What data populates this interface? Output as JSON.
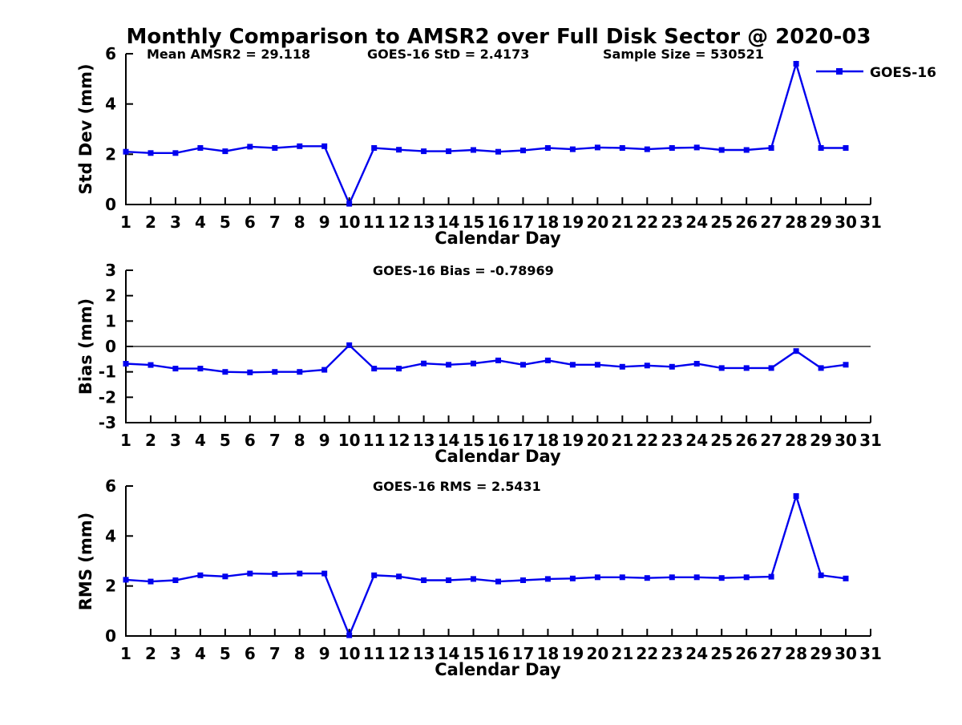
{
  "figure": {
    "title": "Monthly Comparison to AMSR2 over Full Disk Sector @ 2020-03",
    "background": "#FFFFFF"
  },
  "legend": {
    "label": "GOES-16",
    "position": "top-right"
  },
  "colors": {
    "series": "#0000EE",
    "axis": "#000000",
    "text": "#000000",
    "zero_line": "#000000"
  },
  "chart_data": [
    {
      "type": "line",
      "series_name": "GOES-16",
      "annotations": [
        "Mean AMSR2 = 29.118",
        "GOES-16 StD = 2.4173",
        "Sample Size = 530521"
      ],
      "ylabel": "Std Dev (mm)",
      "xlabel": "Calendar Day",
      "ylim": [
        0,
        6
      ],
      "yticks": [
        0,
        2,
        4,
        6
      ],
      "xlim": [
        1,
        31
      ],
      "xticks": [
        1,
        2,
        3,
        4,
        5,
        6,
        7,
        8,
        9,
        10,
        11,
        12,
        13,
        14,
        15,
        16,
        17,
        18,
        19,
        20,
        21,
        22,
        23,
        24,
        25,
        26,
        27,
        28,
        29,
        30,
        31
      ],
      "grid": false,
      "zero_line": false,
      "x": [
        1,
        2,
        3,
        4,
        5,
        6,
        7,
        8,
        9,
        10,
        11,
        12,
        13,
        14,
        15,
        16,
        17,
        18,
        19,
        20,
        21,
        22,
        23,
        24,
        25,
        26,
        27,
        28,
        29,
        30
      ],
      "values": [
        2.1,
        2.05,
        2.05,
        2.25,
        2.12,
        2.3,
        2.25,
        2.32,
        2.32,
        0.03,
        2.25,
        2.18,
        2.12,
        2.12,
        2.17,
        2.1,
        2.15,
        2.25,
        2.2,
        2.27,
        2.25,
        2.2,
        2.25,
        2.27,
        2.17,
        2.17,
        2.25,
        5.6,
        2.25,
        2.25
      ]
    },
    {
      "type": "line",
      "series_name": "GOES-16",
      "annotations": [
        "GOES-16 Bias = -0.78969"
      ],
      "ylabel": "Bias (mm)",
      "xlabel": "Calendar Day",
      "ylim": [
        -3,
        3
      ],
      "yticks": [
        -3,
        -2,
        -1,
        0,
        1,
        2,
        3
      ],
      "xlim": [
        1,
        31
      ],
      "xticks": [
        1,
        2,
        3,
        4,
        5,
        6,
        7,
        8,
        9,
        10,
        11,
        12,
        13,
        14,
        15,
        16,
        17,
        18,
        19,
        20,
        21,
        22,
        23,
        24,
        25,
        26,
        27,
        28,
        29,
        30,
        31
      ],
      "grid": false,
      "zero_line": true,
      "x": [
        1,
        2,
        3,
        4,
        5,
        6,
        7,
        8,
        9,
        10,
        11,
        12,
        13,
        14,
        15,
        16,
        17,
        18,
        19,
        20,
        21,
        22,
        23,
        24,
        25,
        26,
        27,
        28,
        29,
        30
      ],
      "values": [
        -0.68,
        -0.73,
        -0.87,
        -0.87,
        -1.0,
        -1.02,
        -1.0,
        -1.0,
        -0.92,
        0.05,
        -0.87,
        -0.87,
        -0.67,
        -0.72,
        -0.67,
        -0.55,
        -0.72,
        -0.55,
        -0.72,
        -0.72,
        -0.8,
        -0.75,
        -0.8,
        -0.68,
        -0.85,
        -0.85,
        -0.85,
        -0.18,
        -0.85,
        -0.72
      ]
    },
    {
      "type": "line",
      "series_name": "GOES-16",
      "annotations": [
        "GOES-16 RMS = 2.5431"
      ],
      "ylabel": "RMS (mm)",
      "xlabel": "Calendar Day",
      "ylim": [
        0,
        6
      ],
      "yticks": [
        0,
        2,
        4,
        6
      ],
      "xlim": [
        1,
        31
      ],
      "xticks": [
        1,
        2,
        3,
        4,
        5,
        6,
        7,
        8,
        9,
        10,
        11,
        12,
        13,
        14,
        15,
        16,
        17,
        18,
        19,
        20,
        21,
        22,
        23,
        24,
        25,
        26,
        27,
        28,
        29,
        30,
        31
      ],
      "grid": false,
      "zero_line": false,
      "x": [
        1,
        2,
        3,
        4,
        5,
        6,
        7,
        8,
        9,
        10,
        11,
        12,
        13,
        14,
        15,
        16,
        17,
        18,
        19,
        20,
        21,
        22,
        23,
        24,
        25,
        26,
        27,
        28,
        29,
        30
      ],
      "values": [
        2.25,
        2.18,
        2.23,
        2.43,
        2.38,
        2.5,
        2.48,
        2.5,
        2.5,
        0.03,
        2.43,
        2.38,
        2.23,
        2.23,
        2.28,
        2.18,
        2.23,
        2.28,
        2.3,
        2.35,
        2.35,
        2.32,
        2.35,
        2.35,
        2.32,
        2.35,
        2.37,
        5.6,
        2.43,
        2.3
      ]
    }
  ]
}
